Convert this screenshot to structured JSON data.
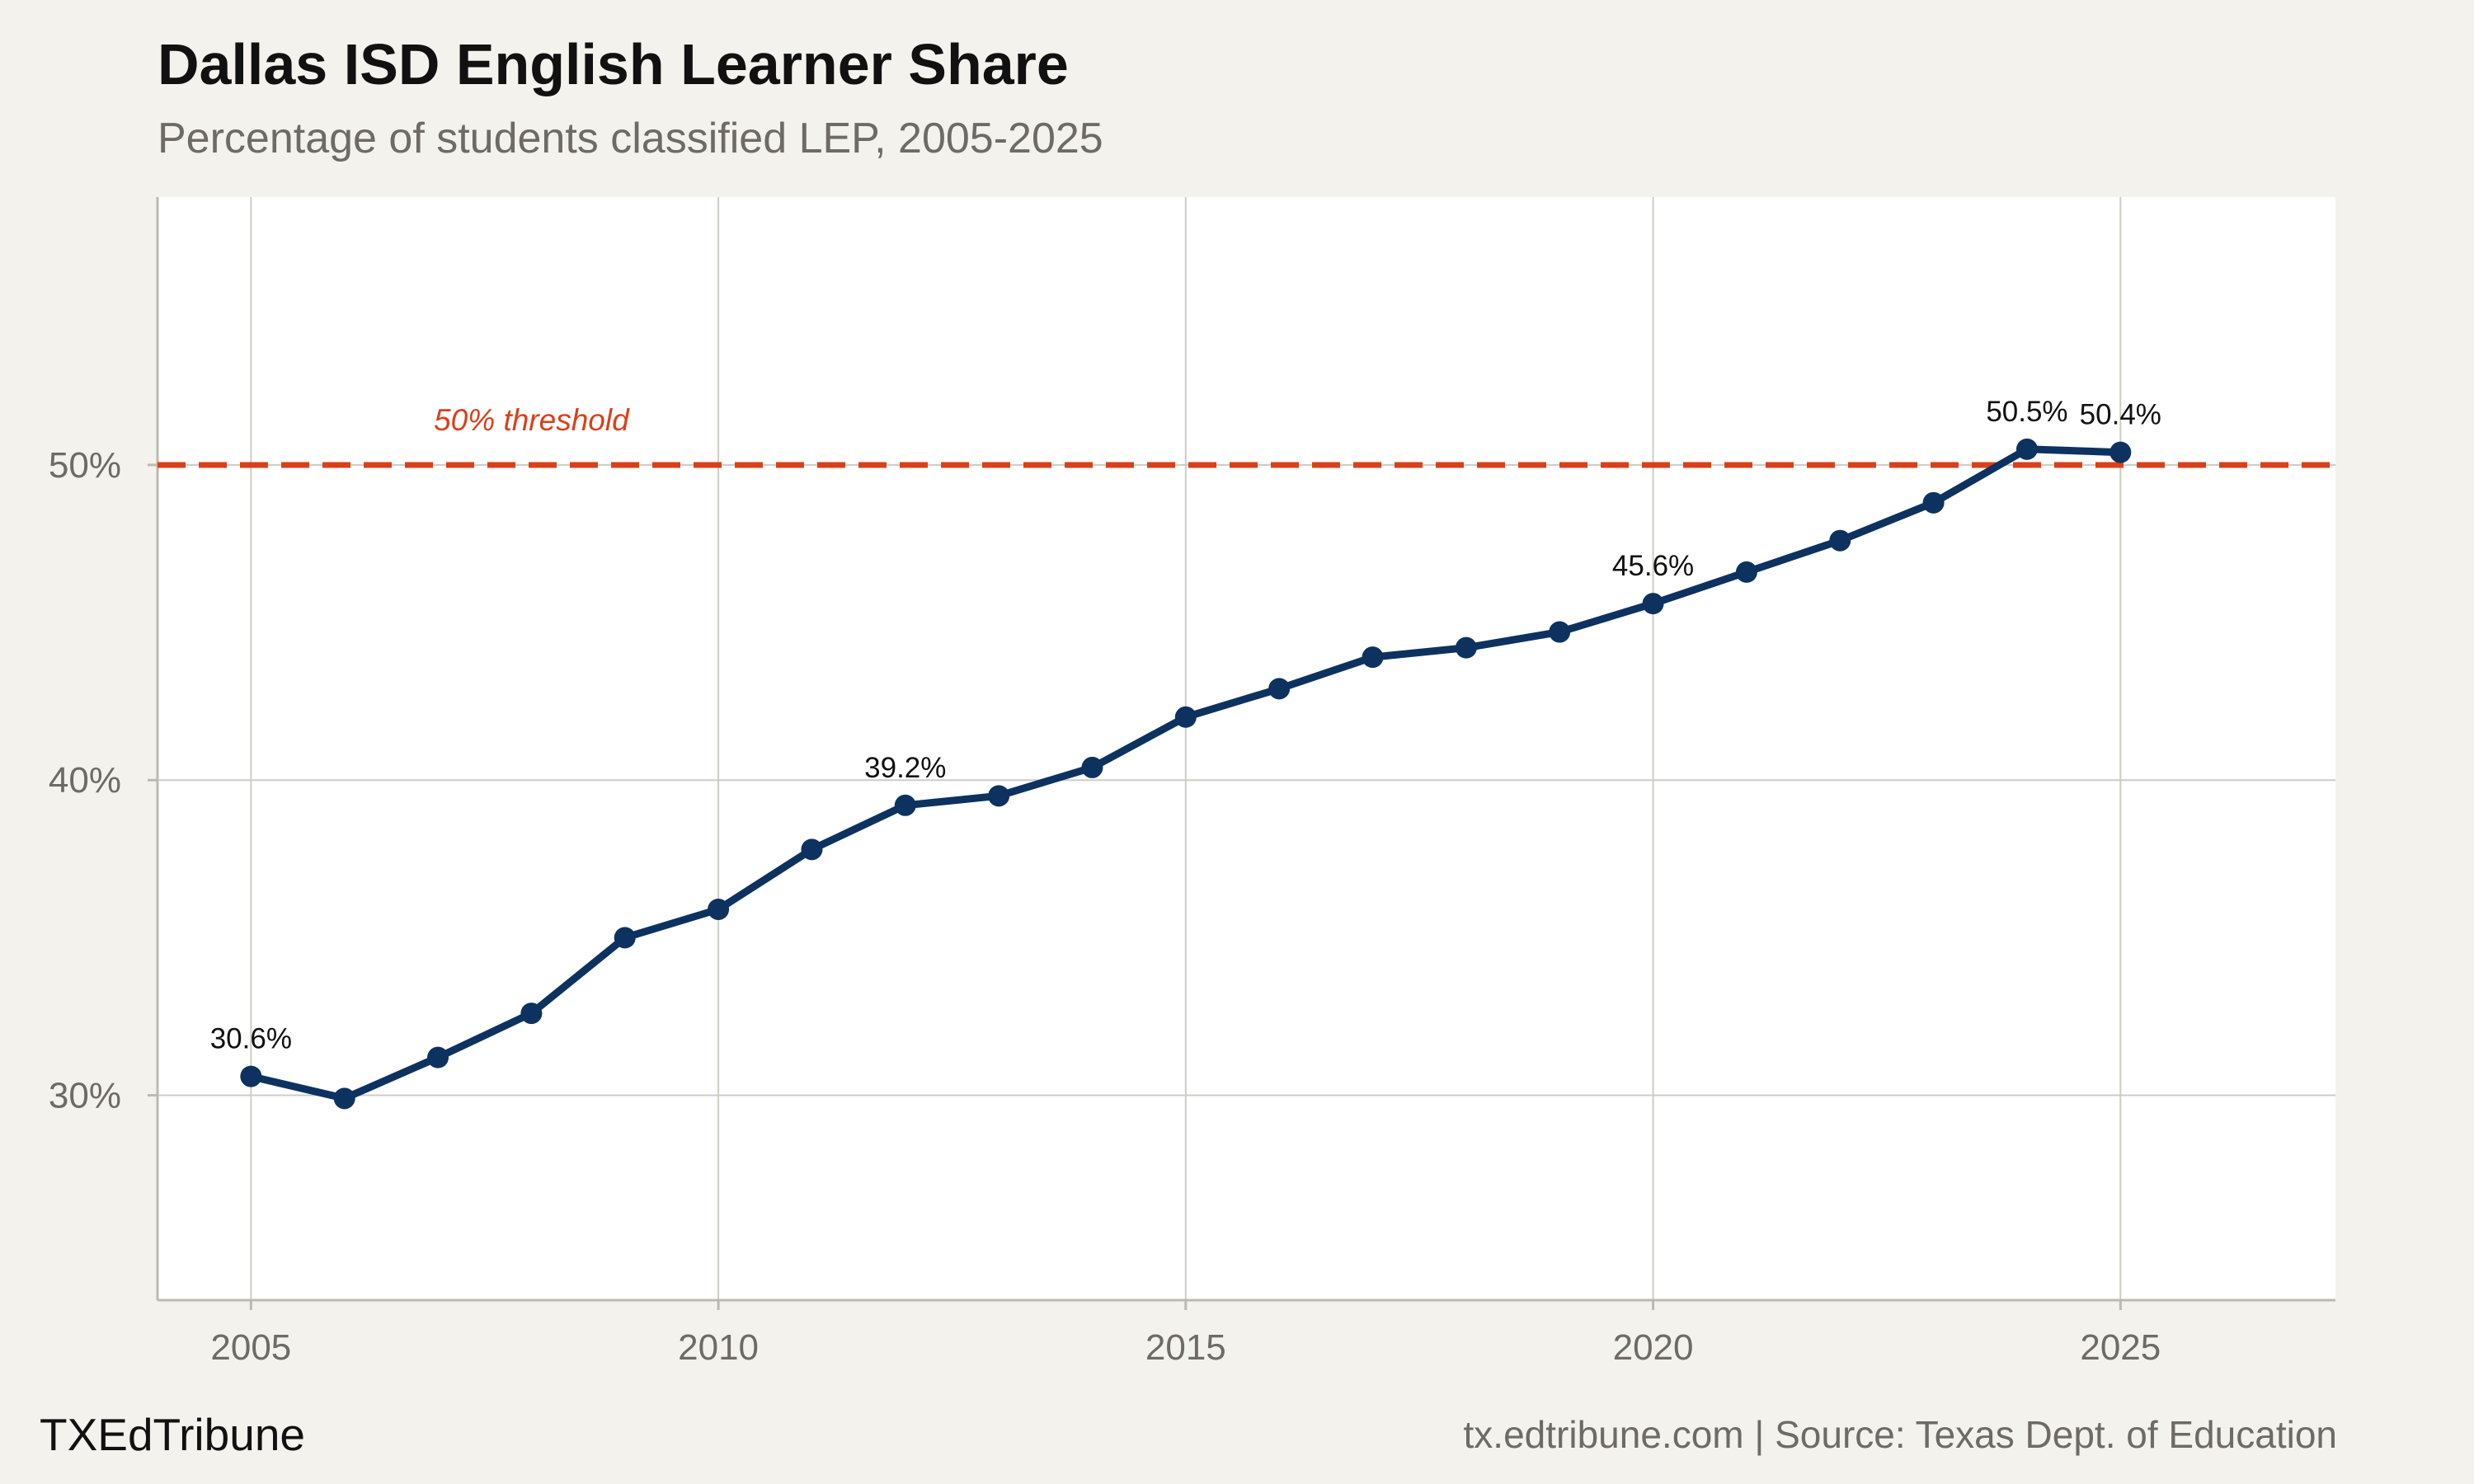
{
  "header": {
    "title": "Dallas ISD English Learner Share",
    "subtitle": "Percentage of students classified LEP, 2005-2025"
  },
  "footer": {
    "brand": "TXEdTribune",
    "credit": "tx.edtribune.com | Source: Texas Dept. of Education"
  },
  "colors": {
    "background": "#f4f2ed",
    "plot_background": "#ffffff",
    "line": "#0d3260",
    "threshold": "#d9401a",
    "grid": "#cfccc6",
    "axis_text": "#6e6a66"
  },
  "chart_data": {
    "type": "line",
    "title": "Dallas ISD English Learner Share",
    "subtitle": "Percentage of students classified LEP, 2005-2025",
    "xlabel": "",
    "ylabel": "",
    "x": [
      2005,
      2006,
      2007,
      2008,
      2009,
      2010,
      2011,
      2012,
      2013,
      2014,
      2015,
      2016,
      2017,
      2018,
      2019,
      2020,
      2021,
      2022,
      2023,
      2024,
      2025
    ],
    "series": [
      {
        "name": "",
        "values": [
          30.6,
          29.9,
          31.2,
          32.6,
          35.0,
          35.9,
          37.8,
          39.2,
          39.5,
          40.4,
          42.0,
          42.9,
          43.9,
          44.2,
          44.7,
          45.6,
          46.6,
          47.6,
          48.8,
          50.5,
          50.4
        ]
      }
    ],
    "xlim": [
      2004,
      2027.3
    ],
    "ylim": [
      23.5,
      58.5
    ],
    "x_ticks": [
      2005,
      2010,
      2015,
      2020,
      2025
    ],
    "x_tick_labels": [
      "2005",
      "2010",
      "2015",
      "2020",
      "2025"
    ],
    "y_ticks": [
      30,
      40,
      50
    ],
    "y_tick_labels": [
      "30%",
      "40%",
      "50%"
    ],
    "reference_line": {
      "y": 50,
      "label": "50% threshold",
      "label_x": 2008,
      "style": "dashed"
    },
    "data_labels": [
      {
        "x": 2005,
        "y": 30.6,
        "text": "30.6%"
      },
      {
        "x": 2012,
        "y": 39.2,
        "text": "39.2%"
      },
      {
        "x": 2020,
        "y": 45.6,
        "text": "45.6%"
      },
      {
        "x": 2024,
        "y": 50.5,
        "text": "50.5%"
      },
      {
        "x": 2025,
        "y": 50.4,
        "text": "50.4%"
      }
    ],
    "grid": true,
    "legend": "none"
  }
}
